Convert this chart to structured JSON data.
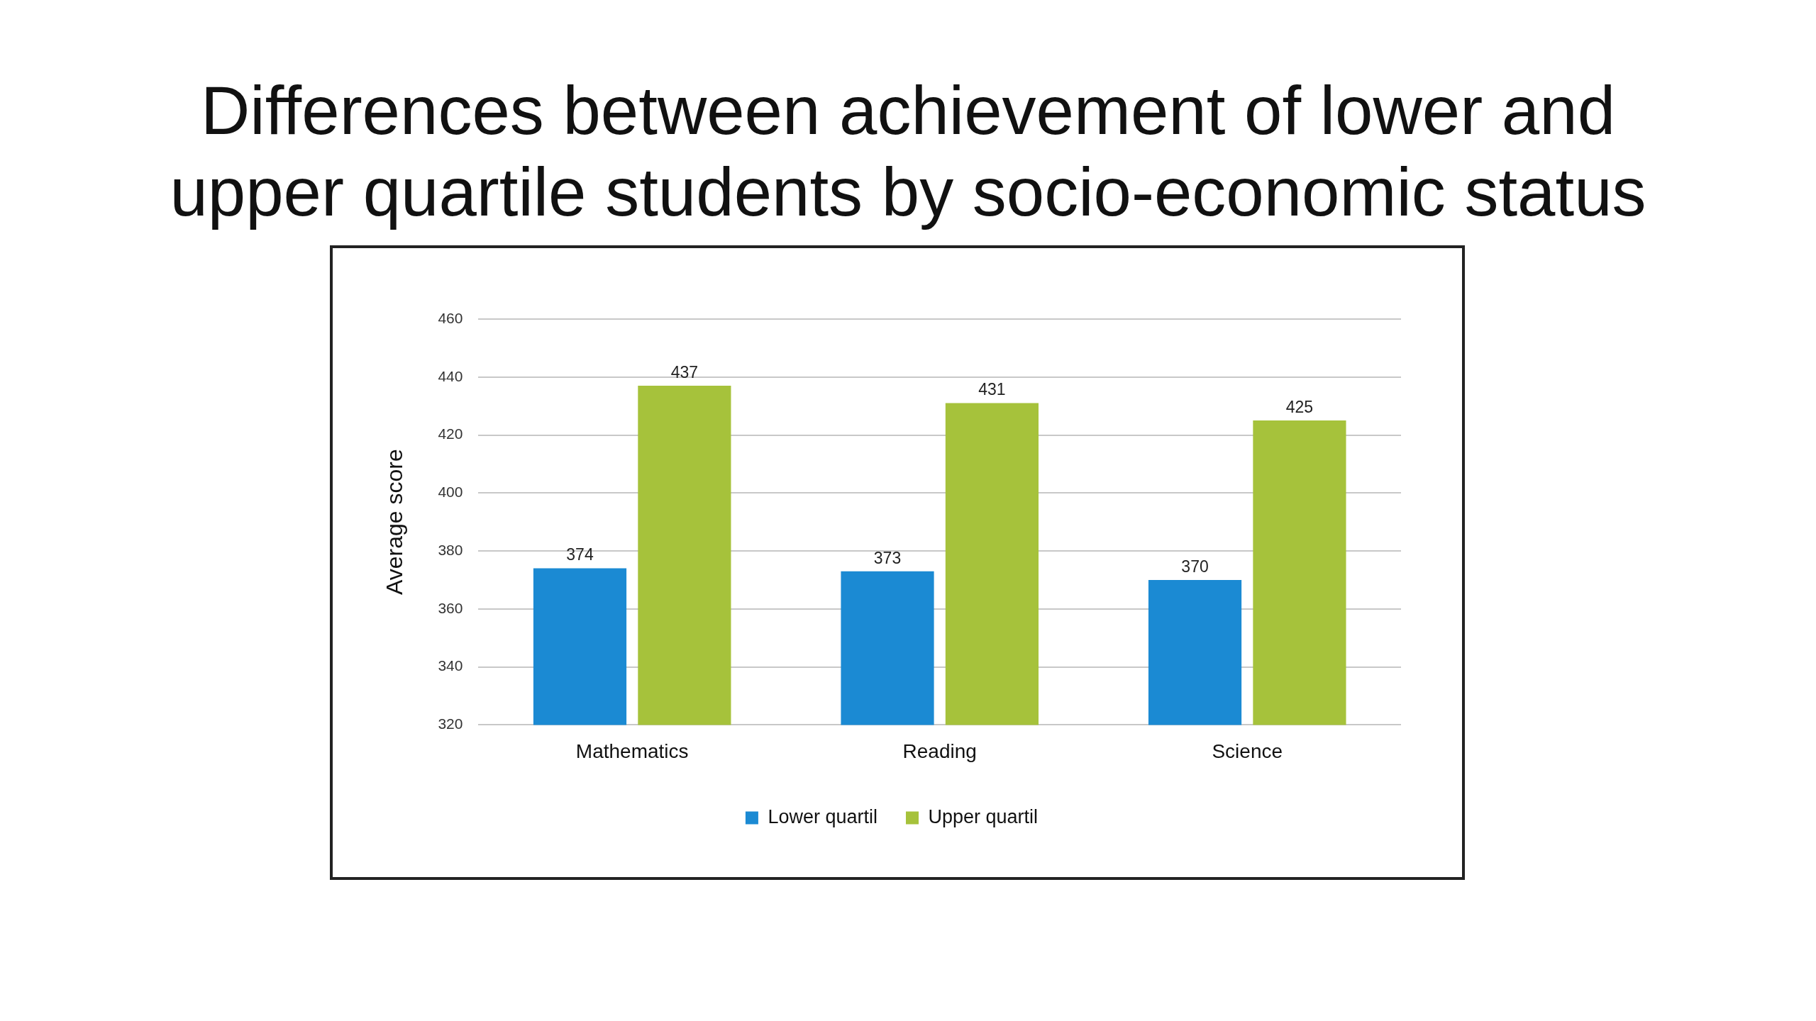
{
  "chart_data": {
    "type": "bar",
    "title": "Differences between achievement of lower and upper quartile students by socio-economic status",
    "ylabel": "Average score",
    "categories": [
      "Mathematics",
      "Reading",
      "Science"
    ],
    "series": [
      {
        "name": "Lower quartil",
        "color": "#1b8ad3",
        "values": [
          374,
          373,
          370
        ]
      },
      {
        "name": "Upper quartil",
        "color": "#a6c23b",
        "values": [
          437,
          431,
          425
        ]
      }
    ],
    "ylim": [
      320,
      460
    ],
    "yticks": [
      320,
      340,
      360,
      380,
      400,
      420,
      440,
      460
    ],
    "grid": "y",
    "legend": "bottom",
    "data_labels": true
  }
}
